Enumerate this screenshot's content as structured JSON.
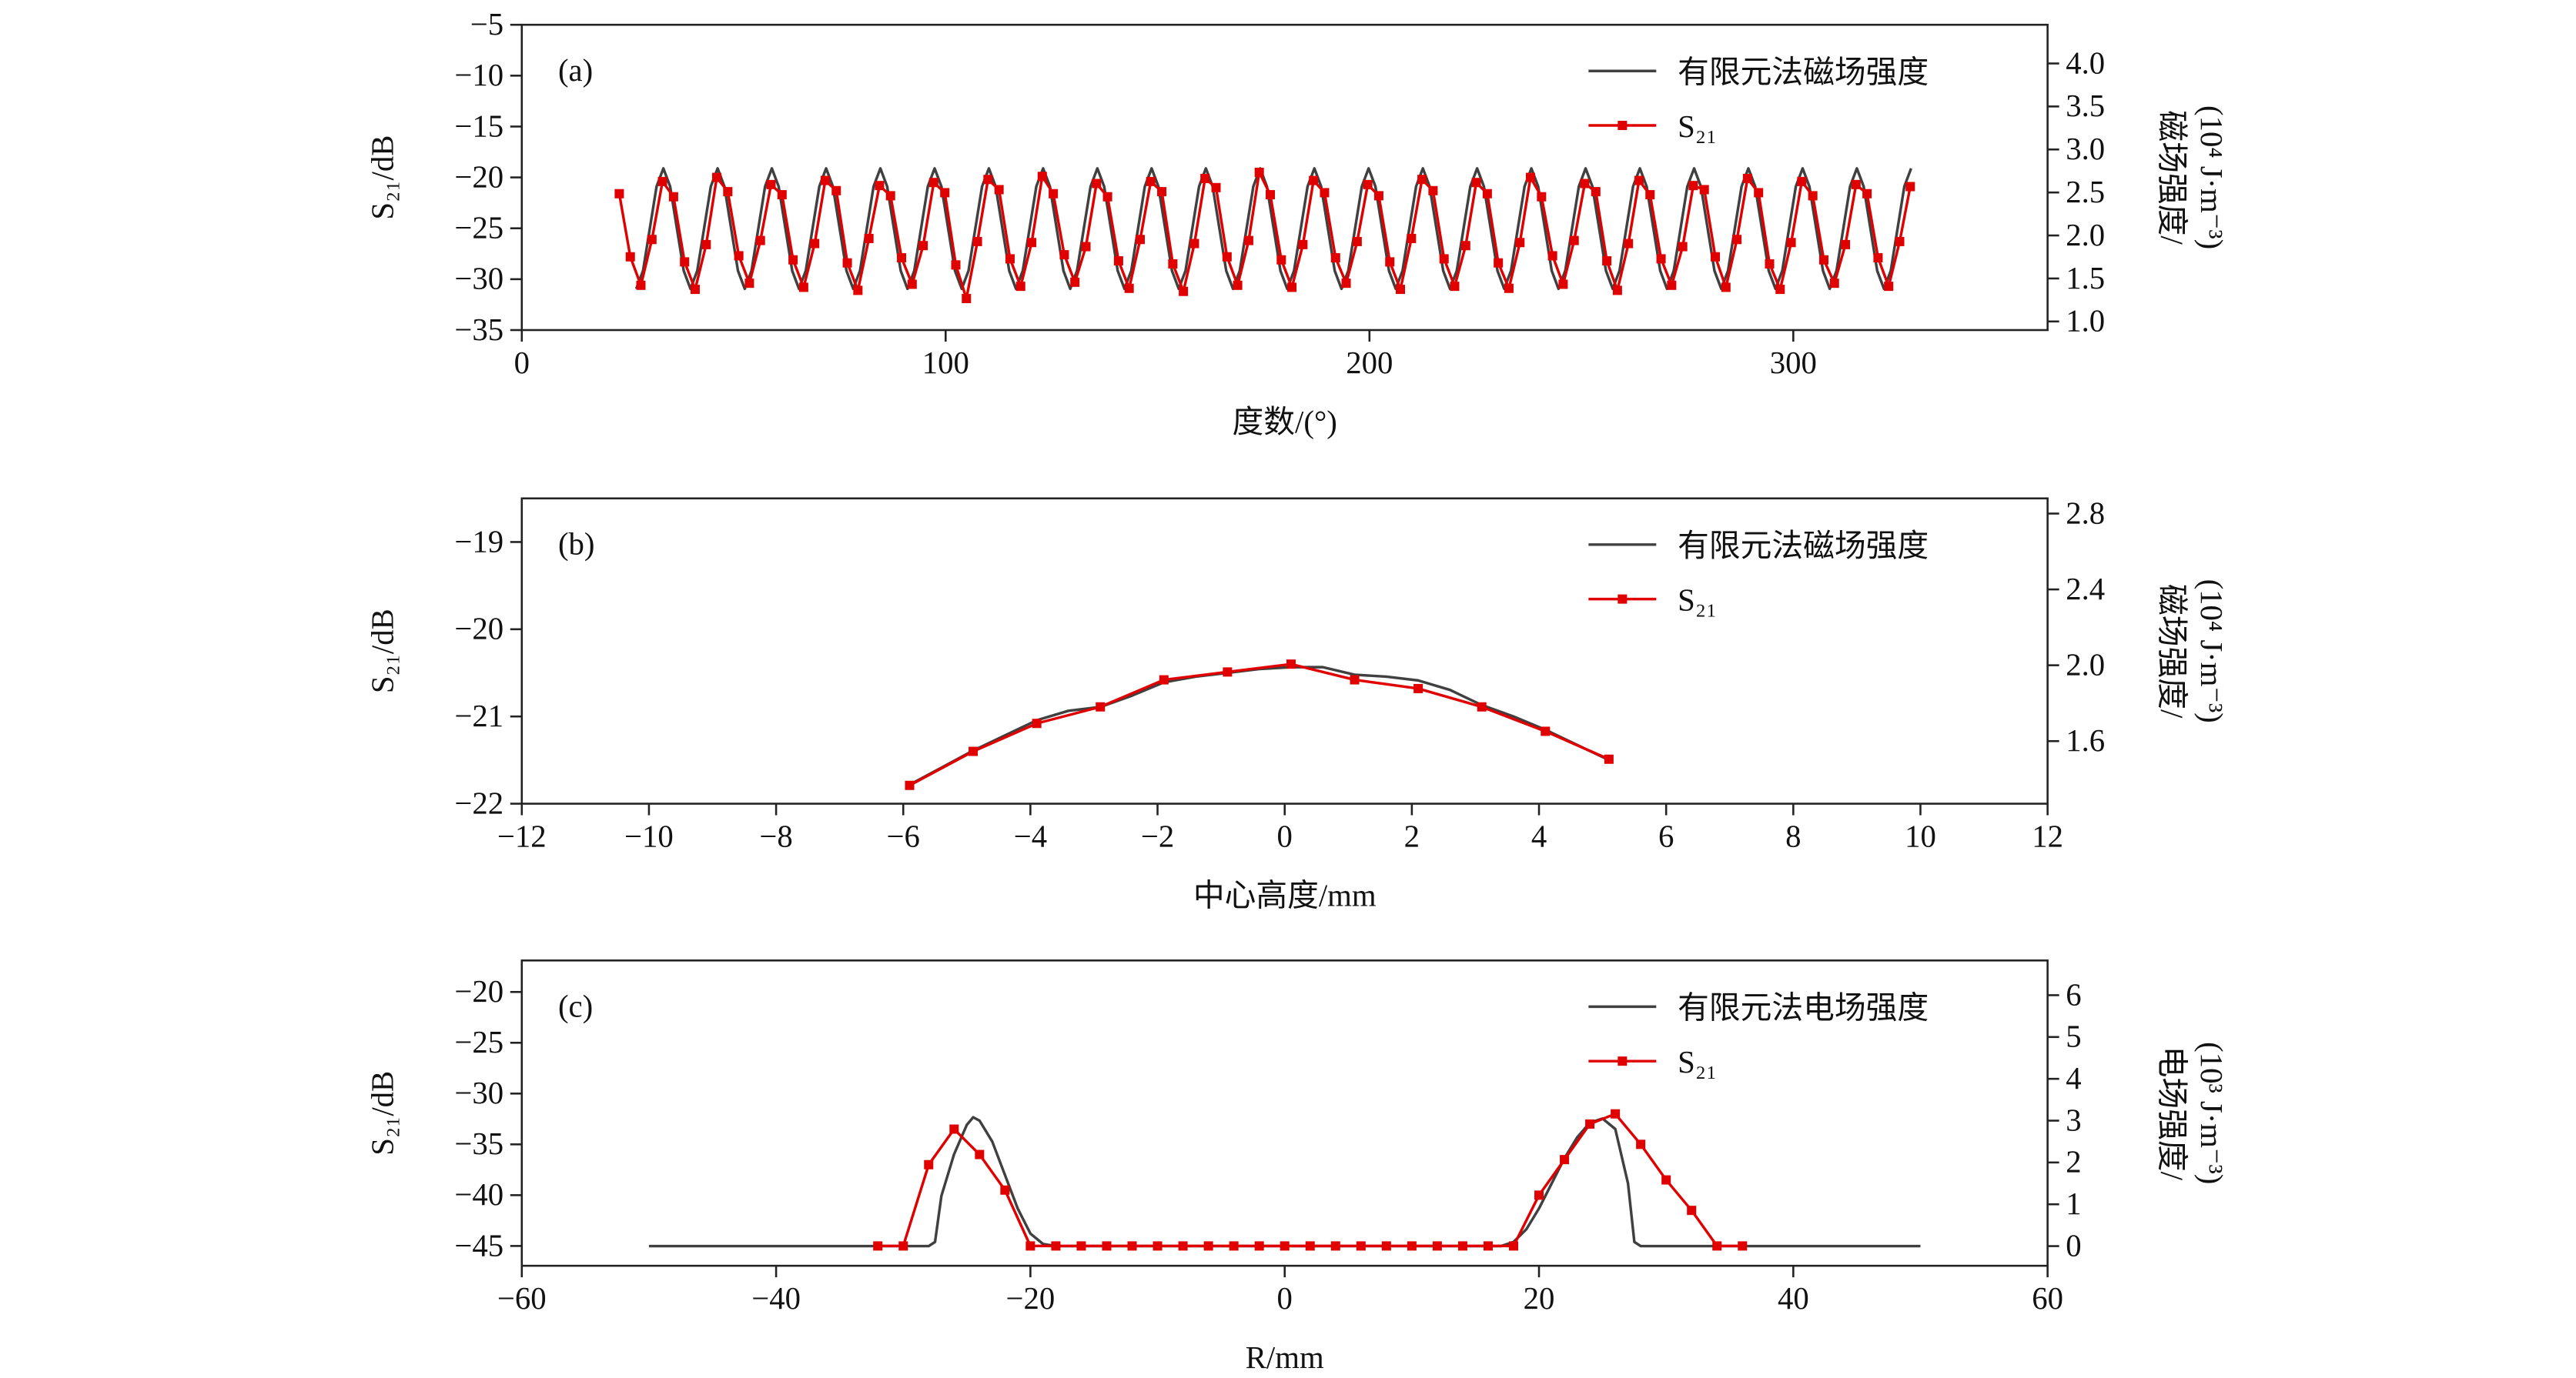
{
  "chart_data": [
    {
      "type": "line",
      "label": "(a)",
      "xlabel": "度数/(°)",
      "ylabel": "S₂₁/dB",
      "y2label": [
        "磁场强度/",
        "(10⁴ J·m⁻³)"
      ],
      "xlim": [
        0,
        360
      ],
      "xticks": [
        0,
        100,
        200,
        300
      ],
      "ylim": [
        -35,
        -5
      ],
      "yticks": [
        {
          "value": -5,
          "label": "−5"
        },
        {
          "value": -10,
          "label": "−10"
        },
        {
          "value": -15,
          "label": "−15"
        },
        {
          "value": -20,
          "label": "−20"
        },
        {
          "value": -25,
          "label": "−25"
        },
        {
          "value": -30,
          "label": "−30"
        },
        {
          "value": -35,
          "label": "−35"
        }
      ],
      "y2lim": [
        0.9,
        4.45
      ],
      "y2ticks": [
        {
          "value": 1,
          "label": "1.0"
        },
        1.5,
        {
          "value": 2,
          "label": "2.0"
        },
        2.5,
        {
          "value": 3,
          "label": "3.0"
        },
        3.5,
        {
          "value": 4,
          "label": "4.0"
        }
      ],
      "series": [
        {
          "name": "有限元法磁场强度",
          "color": "#404040",
          "axis": "y2",
          "x": [
            27.0,
            28.6,
            30.2,
            31.8,
            33.4,
            35.0,
            36.6,
            38.2,
            39.8,
            41.4,
            43.0,
            44.6,
            46.2,
            47.8,
            49.4,
            51.0,
            52.6,
            54.2,
            55.8,
            57.4,
            59.0,
            60.6,
            62.2,
            63.8,
            65.4,
            67.0,
            68.6,
            70.2,
            71.8,
            73.4,
            75.0,
            76.6,
            78.2,
            79.8,
            81.4,
            83.0,
            84.6,
            86.2,
            87.8,
            89.4,
            91.0,
            92.6,
            94.2,
            95.8,
            97.4,
            99.0,
            100.6,
            102.2,
            103.8,
            105.4,
            107.0,
            108.6,
            110.2,
            111.8,
            113.4,
            115.0,
            116.6,
            118.2,
            119.8,
            121.4,
            123.0,
            124.6,
            126.2,
            127.8,
            129.4,
            131.0,
            132.6,
            134.2,
            135.8,
            137.4,
            139.0,
            140.6,
            142.2,
            143.8,
            145.4,
            147.0,
            148.6,
            150.2,
            151.8,
            153.4,
            155.0,
            156.6,
            158.2,
            159.8,
            161.4,
            163.0,
            164.6,
            166.2,
            167.8,
            169.4,
            171.0,
            172.6,
            174.2,
            175.8,
            177.4,
            179.0,
            180.6,
            182.2,
            183.8,
            185.4,
            187.0,
            188.6,
            190.2,
            191.8,
            193.4,
            195.0,
            196.6,
            198.2,
            199.8,
            201.4,
            203.0,
            204.6,
            206.2,
            207.8,
            209.4,
            211.0,
            212.6,
            214.2,
            215.8,
            217.4,
            219.0,
            220.6,
            222.2,
            223.8,
            225.4,
            227.0,
            228.6,
            230.2,
            231.8,
            233.4,
            235.0,
            236.6,
            238.2,
            239.8,
            241.4,
            243.0,
            244.6,
            246.2,
            247.8,
            249.4,
            251.0,
            252.6,
            254.2,
            255.8,
            257.4,
            259.0,
            260.6,
            262.2,
            263.8,
            265.4,
            267.0,
            268.6,
            270.2,
            271.8,
            273.4,
            275.0,
            276.6,
            278.2,
            279.8,
            281.4,
            283.0,
            284.6,
            286.2,
            287.8,
            289.4,
            291.0,
            292.6,
            294.2,
            295.8,
            297.4,
            299.0,
            300.6,
            302.2,
            303.8,
            305.4,
            307.0,
            308.6,
            310.2,
            311.8,
            313.4,
            315.0,
            316.6,
            318.2,
            319.8,
            321.4,
            323.0,
            324.6,
            326.2,
            327.8
          ],
          "values": [
            1.38,
            1.59,
            2.08,
            2.57,
            2.78,
            2.57,
            2.08,
            1.59,
            1.38,
            1.59,
            2.08,
            2.57,
            2.78,
            2.57,
            2.08,
            1.59,
            1.38,
            1.59,
            2.08,
            2.57,
            2.78,
            2.57,
            2.08,
            1.59,
            1.38,
            1.59,
            2.08,
            2.57,
            2.78,
            2.57,
            2.08,
            1.59,
            1.38,
            1.59,
            2.08,
            2.57,
            2.78,
            2.57,
            2.08,
            1.59,
            1.38,
            1.59,
            2.08,
            2.57,
            2.78,
            2.57,
            2.08,
            1.59,
            1.38,
            1.59,
            2.08,
            2.57,
            2.78,
            2.57,
            2.08,
            1.59,
            1.38,
            1.59,
            2.08,
            2.57,
            2.78,
            2.57,
            2.08,
            1.59,
            1.38,
            1.59,
            2.08,
            2.57,
            2.78,
            2.57,
            2.08,
            1.59,
            1.38,
            1.59,
            2.08,
            2.57,
            2.78,
            2.57,
            2.08,
            1.59,
            1.38,
            1.59,
            2.08,
            2.57,
            2.78,
            2.57,
            2.08,
            1.59,
            1.38,
            1.59,
            2.08,
            2.57,
            2.78,
            2.57,
            2.08,
            1.59,
            1.38,
            1.59,
            2.08,
            2.57,
            2.78,
            2.57,
            2.08,
            1.59,
            1.38,
            1.59,
            2.08,
            2.57,
            2.78,
            2.57,
            2.08,
            1.59,
            1.38,
            1.59,
            2.08,
            2.57,
            2.78,
            2.57,
            2.08,
            1.59,
            1.38,
            1.59,
            2.08,
            2.57,
            2.78,
            2.57,
            2.08,
            1.59,
            1.38,
            1.59,
            2.08,
            2.57,
            2.78,
            2.57,
            2.08,
            1.59,
            1.38,
            1.59,
            2.08,
            2.57,
            2.78,
            2.57,
            2.08,
            1.59,
            1.38,
            1.59,
            2.08,
            2.57,
            2.78,
            2.57,
            2.08,
            1.59,
            1.38,
            1.59,
            2.08,
            2.57,
            2.78,
            2.57,
            2.08,
            1.59,
            1.38,
            1.59,
            2.08,
            2.57,
            2.78,
            2.57,
            2.08,
            1.59,
            1.38,
            1.59,
            2.08,
            2.57,
            2.78,
            2.57,
            2.08,
            1.59,
            1.38,
            1.59,
            2.08,
            2.57,
            2.78,
            2.57,
            2.08,
            1.59,
            1.38,
            1.59,
            2.08,
            2.57,
            2.78
          ]
        },
        {
          "name": "S₂₁",
          "color": "#e00000",
          "marker": "square",
          "x": [
            23.0,
            25.6,
            28.1,
            30.7,
            33.2,
            35.8,
            38.4,
            40.9,
            43.5,
            46.0,
            48.6,
            51.2,
            53.7,
            56.3,
            58.8,
            61.4,
            64.0,
            66.5,
            69.1,
            71.6,
            74.2,
            76.8,
            79.3,
            81.9,
            84.4,
            87.0,
            89.6,
            92.1,
            94.7,
            97.2,
            99.8,
            102.4,
            104.9,
            107.5,
            110.0,
            112.6,
            115.2,
            117.7,
            120.3,
            122.8,
            125.4,
            128.0,
            130.5,
            133.1,
            135.6,
            138.2,
            140.8,
            143.3,
            145.9,
            148.4,
            151.0,
            153.6,
            156.1,
            158.7,
            161.2,
            163.8,
            166.4,
            168.9,
            171.5,
            174.0,
            176.6,
            179.2,
            181.7,
            184.3,
            186.8,
            189.4,
            192.0,
            194.5,
            197.1,
            199.6,
            202.2,
            204.8,
            207.3,
            209.9,
            212.4,
            215.0,
            217.6,
            220.1,
            222.7,
            225.2,
            227.8,
            230.4,
            232.9,
            235.5,
            238.0,
            240.6,
            243.2,
            245.7,
            248.3,
            250.8,
            253.4,
            256.0,
            258.5,
            261.1,
            263.6,
            266.2,
            268.8,
            271.3,
            273.9,
            276.4,
            279.0,
            281.6,
            284.1,
            286.7,
            289.2,
            291.8,
            294.4,
            296.9,
            299.5,
            302.0,
            304.6,
            307.2,
            309.7,
            312.3,
            314.8,
            317.4,
            320.0,
            322.5,
            325.1,
            327.6
          ],
          "values": [
            -21.6,
            -27.8,
            -30.6,
            -26.1,
            -20.4,
            -21.9,
            -28.3,
            -31.0,
            -26.6,
            -20.0,
            -21.4,
            -27.7,
            -30.4,
            -26.2,
            -20.7,
            -21.7,
            -28.1,
            -30.8,
            -26.5,
            -20.3,
            -21.3,
            -28.4,
            -31.1,
            -26.0,
            -20.8,
            -21.8,
            -27.9,
            -30.5,
            -26.7,
            -20.5,
            -21.5,
            -28.6,
            -31.9,
            -26.3,
            -20.2,
            -21.2,
            -28.0,
            -30.7,
            -26.4,
            -19.9,
            -21.6,
            -27.6,
            -30.3,
            -26.8,
            -20.6,
            -21.9,
            -28.2,
            -30.9,
            -26.1,
            -20.4,
            -21.4,
            -28.5,
            -31.2,
            -26.5,
            -20.1,
            -21.0,
            -27.8,
            -30.6,
            -26.2,
            -19.5,
            -21.7,
            -28.1,
            -30.8,
            -26.6,
            -20.3,
            -21.5,
            -27.9,
            -30.4,
            -26.3,
            -20.7,
            -21.8,
            -28.3,
            -31.0,
            -26.0,
            -20.2,
            -21.3,
            -28.0,
            -30.7,
            -26.7,
            -20.5,
            -21.6,
            -28.4,
            -30.9,
            -26.4,
            -20.0,
            -21.9,
            -27.7,
            -30.5,
            -26.2,
            -20.6,
            -21.4,
            -28.2,
            -31.1,
            -26.5,
            -20.3,
            -21.7,
            -28.0,
            -30.6,
            -26.8,
            -20.8,
            -21.2,
            -27.8,
            -30.8,
            -26.1,
            -20.1,
            -21.5,
            -28.5,
            -31.0,
            -26.4,
            -20.4,
            -21.8,
            -28.1,
            -30.4,
            -26.6,
            -20.7,
            -21.6,
            -27.9,
            -30.7,
            -26.3,
            -20.9
          ]
        }
      ]
    },
    {
      "type": "line",
      "label": "(b)",
      "xlabel": "中心高度/mm",
      "ylabel": "S₂₁/dB",
      "y2label": [
        "磁场强度/",
        "(10⁴ J·m⁻³)"
      ],
      "xlim": [
        -12,
        12
      ],
      "xticks": [
        {
          "value": -12,
          "label": "−12"
        },
        {
          "value": -10,
          "label": "−10"
        },
        {
          "value": -8,
          "label": "−8"
        },
        {
          "value": -6,
          "label": "−6"
        },
        {
          "value": -4,
          "label": "−4"
        },
        {
          "value": -2,
          "label": "−2"
        },
        0,
        2,
        4,
        6,
        8,
        10,
        12
      ],
      "ylim": [
        -22,
        -18.5
      ],
      "yticks": [
        {
          "value": -19,
          "label": "−19"
        },
        {
          "value": -20,
          "label": "−20"
        },
        {
          "value": -21,
          "label": "−21"
        },
        {
          "value": -22,
          "label": "−22"
        }
      ],
      "y2lim": [
        1.27,
        2.88
      ],
      "y2ticks": [
        1.6,
        {
          "value": 2,
          "label": "2.0"
        },
        2.4,
        2.8
      ],
      "series": [
        {
          "name": "有限元法磁场强度",
          "color": "#404040",
          "axis": "y2",
          "x": [
            -5.9,
            -5.4,
            -4.9,
            -4.4,
            -3.9,
            -3.4,
            -2.9,
            -2.4,
            -1.9,
            -1.4,
            -0.9,
            -0.4,
            0.1,
            0.6,
            1.1,
            1.6,
            2.1,
            2.6,
            3.1,
            3.6,
            4.1,
            4.6,
            5.1
          ],
          "values": [
            1.37,
            1.46,
            1.55,
            1.63,
            1.71,
            1.76,
            1.78,
            1.84,
            1.91,
            1.94,
            1.96,
            1.98,
            1.99,
            1.99,
            1.95,
            1.94,
            1.92,
            1.87,
            1.79,
            1.73,
            1.66,
            1.58,
            1.5
          ]
        },
        {
          "name": "S₂₁",
          "color": "#e00000",
          "marker": "square",
          "x": [
            -5.9,
            -4.9,
            -3.9,
            -2.9,
            -1.9,
            -0.9,
            0.1,
            1.1,
            2.1,
            3.1,
            4.1,
            5.1
          ],
          "values": [
            -21.79,
            -21.4,
            -21.08,
            -20.89,
            -20.58,
            -20.49,
            -20.4,
            -20.58,
            -20.68,
            -20.89,
            -21.17,
            -21.49
          ]
        }
      ]
    },
    {
      "type": "line",
      "label": "(c)",
      "xlabel": "R/mm",
      "ylabel": "S₂₁/dB",
      "y2label": [
        "电场强度/",
        "(10³ J·m⁻³)"
      ],
      "xlim": [
        -60,
        60
      ],
      "xticks": [
        {
          "value": -60,
          "label": "−60"
        },
        {
          "value": -40,
          "label": "−40"
        },
        {
          "value": -20,
          "label": "−20"
        },
        0,
        20,
        40,
        60
      ],
      "ylim": [
        -46.95,
        -16.9
      ],
      "yticks": [
        {
          "value": -20,
          "label": "−20"
        },
        {
          "value": -25,
          "label": "−25"
        },
        {
          "value": -30,
          "label": "−30"
        },
        {
          "value": -35,
          "label": "−35"
        },
        {
          "value": -40,
          "label": "−40"
        },
        {
          "value": -45,
          "label": "−45"
        }
      ],
      "y2lim": [
        -0.47,
        6.83
      ],
      "y2ticks": [
        0,
        1,
        2,
        3,
        4,
        5,
        6
      ],
      "series": [
        {
          "name": "有限元法电场强度",
          "color": "#404040",
          "axis": "y2",
          "x": [
            -50,
            -28,
            -27.5,
            -27,
            -26,
            -25,
            -24.5,
            -24,
            -23,
            -22,
            -21,
            -20,
            -19,
            -18,
            17,
            18,
            19,
            20,
            21,
            22,
            23,
            24,
            25,
            26,
            27,
            27.5,
            28,
            50
          ],
          "values": [
            0,
            0,
            0.1,
            1.2,
            2.2,
            2.9,
            3.08,
            3.0,
            2.5,
            1.7,
            0.9,
            0.3,
            0.05,
            0,
            0,
            0.1,
            0.4,
            0.9,
            1.5,
            2.1,
            2.6,
            2.95,
            3.05,
            2.8,
            1.5,
            0.1,
            0,
            0
          ]
        },
        {
          "name": "S₂₁",
          "color": "#e00000",
          "marker": "square",
          "x": [
            -32,
            -30,
            -28,
            -26,
            -24,
            -22,
            -20,
            -18,
            -16,
            -14,
            -12,
            -10,
            -8,
            -6,
            -4,
            -2,
            0,
            2,
            4,
            6,
            8,
            10,
            12,
            14,
            16,
            18,
            20,
            22,
            24,
            26,
            28,
            30,
            32,
            34,
            36
          ],
          "values": [
            -45,
            -45,
            -37,
            -33.5,
            -36,
            -39.5,
            -45,
            -45,
            -45,
            -45,
            -45,
            -45,
            -45,
            -45,
            -45,
            -45,
            -45,
            -45,
            -45,
            -45,
            -45,
            -45,
            -45,
            -45,
            -45,
            -45,
            -40,
            -36.5,
            -33,
            -32,
            -35,
            -38.5,
            -41.5,
            -45,
            -45
          ]
        }
      ]
    }
  ]
}
